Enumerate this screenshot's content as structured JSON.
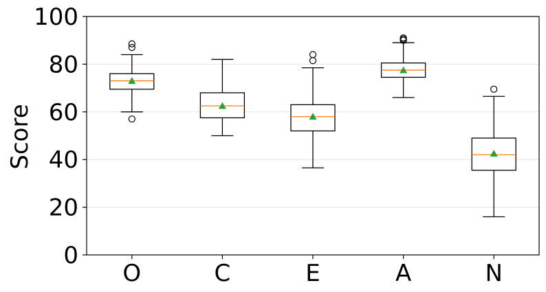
{
  "chart_data": {
    "type": "box",
    "title": "",
    "xlabel": "",
    "ylabel": "Score",
    "ylim": [
      0,
      100
    ],
    "yticks": [
      0,
      20,
      40,
      60,
      80,
      100
    ],
    "grid": "horizontal",
    "categories": [
      "O",
      "C",
      "E",
      "A",
      "N"
    ],
    "boxes": [
      {
        "category": "O",
        "whisker_low": 60,
        "q1": 69.5,
        "median": 73,
        "q3": 76,
        "whisker_high": 84,
        "mean": 73,
        "outliers": [
          88.5,
          87,
          57
        ]
      },
      {
        "category": "C",
        "whisker_low": 50,
        "q1": 57.5,
        "median": 62.5,
        "q3": 68,
        "whisker_high": 82,
        "mean": 62.5,
        "outliers": []
      },
      {
        "category": "E",
        "whisker_low": 36.5,
        "q1": 52,
        "median": 58,
        "q3": 63,
        "whisker_high": 78.5,
        "mean": 58,
        "outliers": [
          84,
          81.5
        ]
      },
      {
        "category": "A",
        "whisker_low": 66,
        "q1": 74.5,
        "median": 77.5,
        "q3": 80.5,
        "whisker_high": 89,
        "mean": 77.5,
        "outliers": [
          91,
          90.5,
          90
        ]
      },
      {
        "category": "N",
        "whisker_low": 16,
        "q1": 35.5,
        "median": 42,
        "q3": 49,
        "whisker_high": 66.5,
        "mean": 42.5,
        "outliers": [
          69.5
        ]
      }
    ],
    "colors": {
      "box": "#000000",
      "median": "#ff7f0e",
      "mean": "#2ca02c",
      "outlier": "#000000"
    }
  }
}
